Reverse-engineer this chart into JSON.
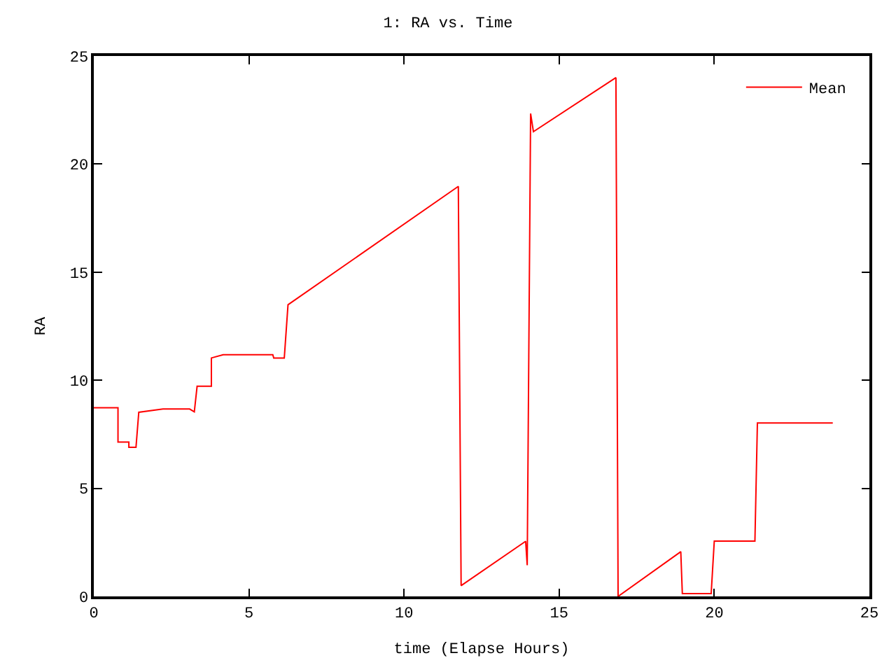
{
  "chart_data": {
    "type": "line",
    "title": "1: RA vs. Time",
    "xlabel": "time (Elapse Hours)",
    "ylabel": "RA",
    "xlim": [
      0,
      25
    ],
    "xticks": [
      0,
      5,
      10,
      15,
      20,
      25
    ],
    "ylim": [
      0,
      25
    ],
    "yticks": [
      0,
      5,
      10,
      15,
      20,
      25
    ],
    "legend": "top right",
    "series": [
      {
        "name": "Mean",
        "color": "#ff0000",
        "x": [
          0,
          0.78,
          0.78,
          1.13,
          1.13,
          1.36,
          1.45,
          2.23,
          3.09,
          3.24,
          3.33,
          3.79,
          3.79,
          4.17,
          5.77,
          5.8,
          6.14,
          6.26,
          11.75,
          11.84,
          13.92,
          13.97,
          14.08,
          14.17,
          16.83,
          16.9,
          18.92,
          18.97,
          19.9,
          20.0,
          21.31,
          21.39,
          23.82
        ],
        "values": [
          8.73,
          8.73,
          7.14,
          7.14,
          6.9,
          6.9,
          8.52,
          8.67,
          8.67,
          8.54,
          9.72,
          9.72,
          11.03,
          11.18,
          11.18,
          11.03,
          11.03,
          13.49,
          18.97,
          0.5,
          2.55,
          1.44,
          22.34,
          21.5,
          24.0,
          0.0,
          2.07,
          0.13,
          0.13,
          2.56,
          2.56,
          8.02,
          8.02
        ]
      }
    ]
  }
}
